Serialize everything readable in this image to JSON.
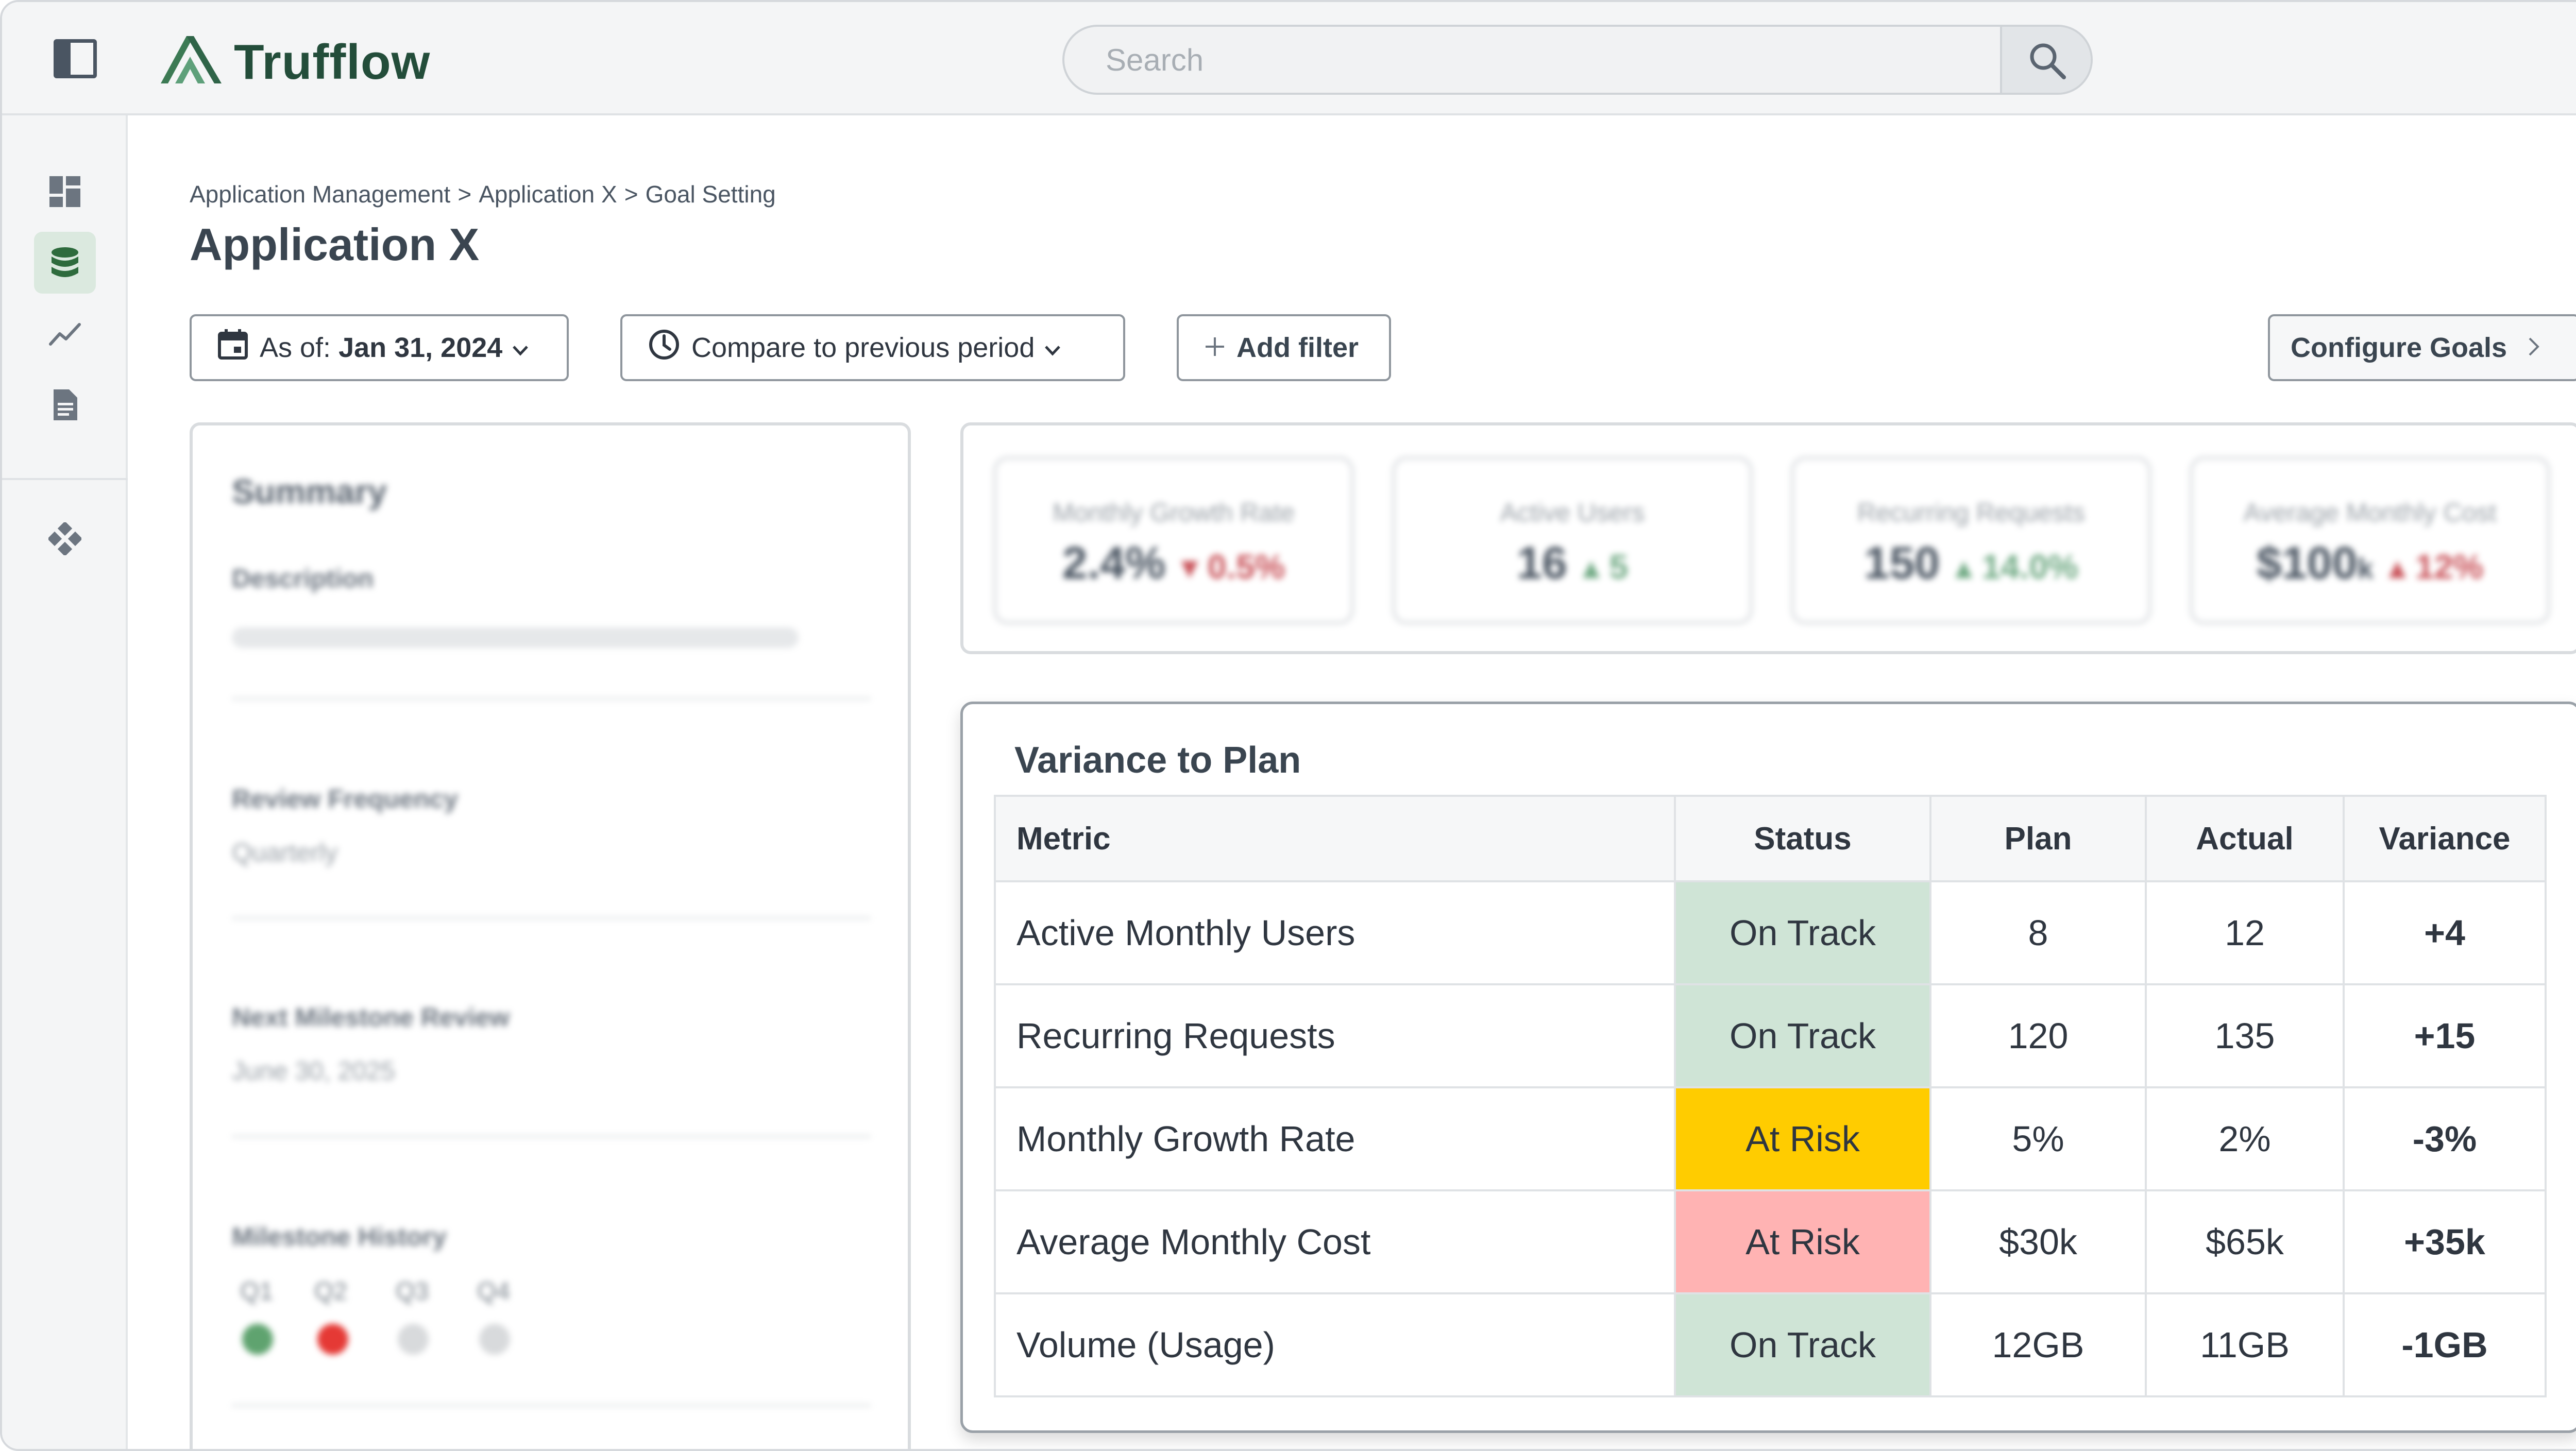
{
  "app": {
    "name": "Trufflow",
    "brand_color": "#234d3a"
  },
  "search": {
    "placeholder": "Search",
    "value": ""
  },
  "sidebar": {
    "items": [
      {
        "icon": "dashboard-icon"
      },
      {
        "icon": "database-icon",
        "active": true
      },
      {
        "icon": "trend-icon"
      },
      {
        "icon": "document-icon"
      },
      {
        "icon": "integrations-icon"
      }
    ]
  },
  "breadcrumb": [
    "Application Management",
    ">",
    "Application X",
    ">",
    "Goal Setting"
  ],
  "page": {
    "title": "Application X"
  },
  "toolbar": {
    "asof_prefix": "As of: ",
    "asof_value": "Jan 31, 2024",
    "compare_label": "Compare to previous period",
    "add_filter_label": "Add filter",
    "configure_goals_label": "Configure Goals"
  },
  "summary": {
    "title": "Summary",
    "description_label": "Description",
    "review_frequency_label": "Review Frequency",
    "review_frequency_value": "Quarterly",
    "next_milestone_label": "Next Milestone Review",
    "next_milestone_value": "June 30, 2025",
    "milestone_history_label": "Milestone History",
    "quarters": [
      {
        "label": "Q1",
        "color": "#5fa36f"
      },
      {
        "label": "Q2",
        "color": "#e53935"
      },
      {
        "label": "Q3",
        "color": "#d8dadc"
      },
      {
        "label": "Q4",
        "color": "#d8dadc"
      }
    ]
  },
  "kpis": [
    {
      "label": "Monthly Growth Rate",
      "value": "2.4%",
      "unit": "",
      "delta": "0.5%",
      "direction": "down"
    },
    {
      "label": "Active Users",
      "value": "16",
      "unit": "",
      "delta": "5",
      "direction": "up"
    },
    {
      "label": "Recurring Requests",
      "value": "150",
      "unit": "",
      "delta": "14.0%",
      "direction": "up"
    },
    {
      "label": "Average Monthly Cost",
      "value": "$100",
      "unit": "k",
      "delta": "12%",
      "direction": "down"
    }
  ],
  "variance": {
    "title": "Variance to Plan",
    "headers": {
      "metric": "Metric",
      "status": "Status",
      "plan": "Plan",
      "actual": "Actual",
      "variance": "Variance"
    },
    "rows": [
      {
        "metric": "Active Monthly Users",
        "status": "On Track",
        "status_color": "#cfe4d6",
        "plan": "8",
        "actual": "12",
        "variance": "+4",
        "variance_tone": "positive"
      },
      {
        "metric": "Recurring Requests",
        "status": "On Track",
        "status_color": "#cfe4d6",
        "plan": "120",
        "actual": "135",
        "variance": "+15",
        "variance_tone": "positive"
      },
      {
        "metric": "Monthly Growth Rate",
        "status": "At Risk",
        "status_color": "#ffcc00",
        "plan": "5%",
        "actual": "2%",
        "variance": "-3%",
        "variance_tone": "negative"
      },
      {
        "metric": "Average Monthly Cost",
        "status": "At Risk",
        "status_color": "#ffb3b3",
        "plan": "$30k",
        "actual": "$65k",
        "variance": "+35k",
        "variance_tone": "negative"
      },
      {
        "metric": "Volume (Usage)",
        "status": "On Track",
        "status_color": "#cfe4d6",
        "plan": "12GB",
        "actual": "11GB",
        "variance": "-1GB",
        "variance_tone": "positive"
      }
    ]
  }
}
